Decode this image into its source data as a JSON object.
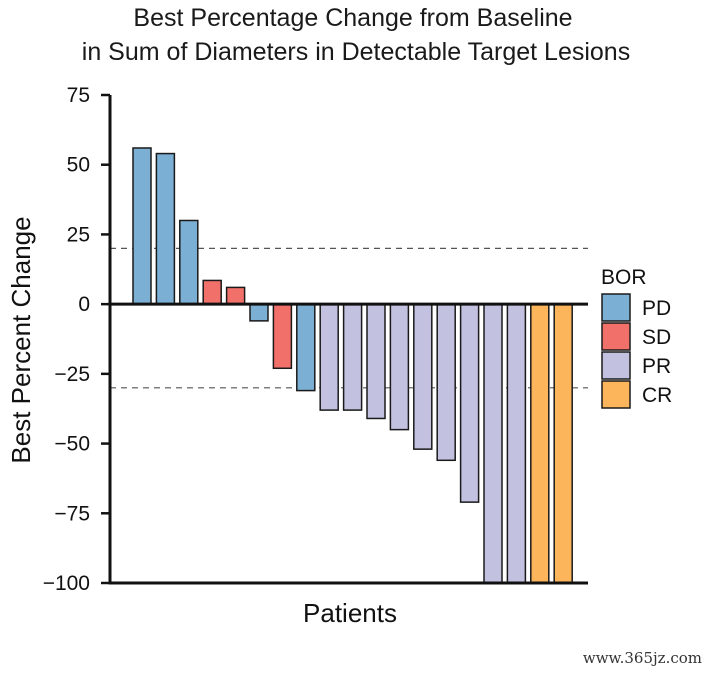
{
  "chart_data": {
    "type": "bar",
    "title": "Best Percentage Change from Baseline",
    "subtitle": "in Sum of Diameters in Detectable Target Lesions",
    "xlabel": "Patients",
    "ylabel": "Best Percent Change",
    "ylim": [
      -100,
      75
    ],
    "yticks": [
      75,
      50,
      25,
      0,
      -25,
      -50,
      -75,
      -100
    ],
    "ytick_labels": [
      "75",
      "50",
      "25",
      "0",
      "−25",
      "−50",
      "−75",
      "−100"
    ],
    "reference_lines": [
      20,
      -30
    ],
    "legend": {
      "title": "BOR",
      "placement": "right",
      "entries": [
        {
          "label": "PD",
          "color": "#7bafd4"
        },
        {
          "label": "SD",
          "color": "#f2706a"
        },
        {
          "label": "PR",
          "color": "#c3c1e0"
        },
        {
          "label": "CR",
          "color": "#fdb55c"
        }
      ]
    },
    "bars": [
      {
        "value": 56,
        "bor": "PD"
      },
      {
        "value": 54,
        "bor": "PD"
      },
      {
        "value": 30,
        "bor": "PD"
      },
      {
        "value": 8.5,
        "bor": "SD"
      },
      {
        "value": 6,
        "bor": "SD"
      },
      {
        "value": -6,
        "bor": "PD"
      },
      {
        "value": -23,
        "bor": "SD"
      },
      {
        "value": -31,
        "bor": "PD"
      },
      {
        "value": -38,
        "bor": "PR"
      },
      {
        "value": -38,
        "bor": "PR"
      },
      {
        "value": -41,
        "bor": "PR"
      },
      {
        "value": -45,
        "bor": "PR"
      },
      {
        "value": -52,
        "bor": "PR"
      },
      {
        "value": -56,
        "bor": "PR"
      },
      {
        "value": -71,
        "bor": "PR"
      },
      {
        "value": -100,
        "bor": "PR"
      },
      {
        "value": -100,
        "bor": "PR"
      },
      {
        "value": -100,
        "bor": "CR"
      },
      {
        "value": -100,
        "bor": "CR"
      }
    ]
  },
  "watermark": "www.365jz.com"
}
